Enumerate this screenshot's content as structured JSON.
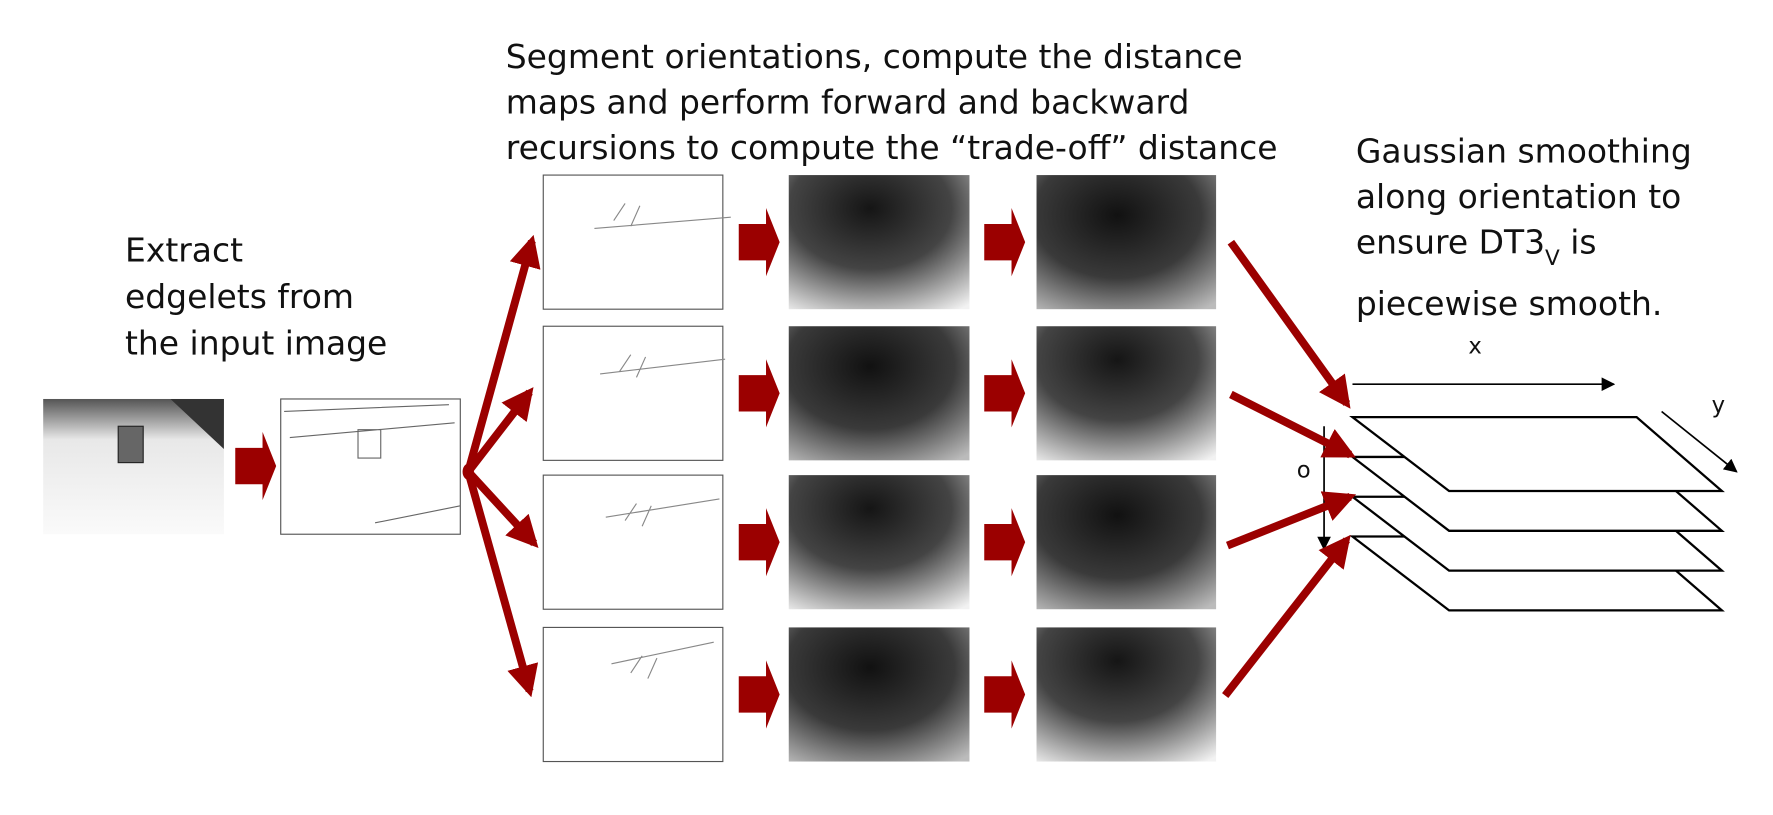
{
  "step1": {
    "lines": [
      "Extract",
      "edgelets from",
      "the input image"
    ]
  },
  "step2": {
    "lines": [
      "Segment orientations, compute the distance",
      "maps and perform forward and backward",
      "recursions to compute the “trade-off” distance"
    ]
  },
  "step3": {
    "line1": "Gaussian smoothing",
    "line2": "along orientation to",
    "line3_pre": "ensure DT3",
    "line3_sub": "V",
    "line3_post": " is",
    "line4": "piecewise smooth."
  },
  "axes": {
    "x": "x",
    "y": "y",
    "o": "o"
  }
}
